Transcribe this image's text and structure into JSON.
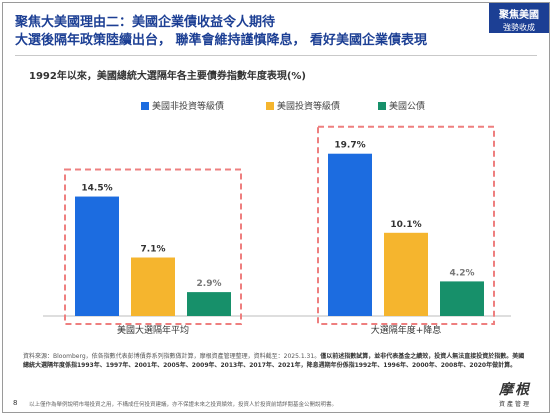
{
  "header": {
    "title_prefix": "聚焦大美國理由二：",
    "title_highlight": "美國企業債收益令人期待",
    "title_line2": "大選後隔年政策陸續出台，  聯準會維持謹慎降息，  看好美國企業債表現",
    "tag_line1": "聚焦美國",
    "tag_line2": "強勢收成"
  },
  "chart_data": {
    "type": "bar",
    "title": "1992年以來，美國總統大選隔年各主要債券指數年度表現(%)",
    "categories": [
      "美國大選隔年平均",
      "大選隔年度+降息"
    ],
    "series": [
      {
        "name": "美國非投資等級債",
        "values": [
          14.5,
          19.7
        ],
        "labels": [
          "14.5%",
          "19.7%"
        ],
        "color": "#1c6ce0"
      },
      {
        "name": "美國投資等級債",
        "values": [
          7.1,
          10.1
        ],
        "labels": [
          "7.1%",
          "10.1%"
        ],
        "color": "#f5b52e"
      },
      {
        "name": "美國公債",
        "values": [
          2.9,
          4.2
        ],
        "labels": [
          "2.9%",
          "4.2%"
        ],
        "color": "#17906a"
      }
    ],
    "ylim": [
      0,
      21
    ],
    "grid": false,
    "legend_position": "top"
  },
  "source": {
    "prefix": "資料來源：",
    "text": "Bloomberg，依各指數代表彭博債券系列指數做計算，摩根資產管理整理，資料截至：2025.1.31。",
    "bold": "僅以前述指數試算，並非代表基金之績效，投資人無法直接投資於指數。美國總統大選隔年度係指1993年、1997年、2001年、2005年、2009年、2013年、2017年、2021年，降息週期年份係指1992年、1996年、2000年、2008年、2020年做計算。"
  },
  "footer": {
    "page_number": "8",
    "disclaimer": "以上僅作為舉例說明市場投資之用，不構成任何投資建議，亦不保證未來之投資績效，投資人於投資前請詳閱基金公開說明書。"
  },
  "logo": {
    "name": "摩根",
    "subtitle": "資產管理"
  }
}
